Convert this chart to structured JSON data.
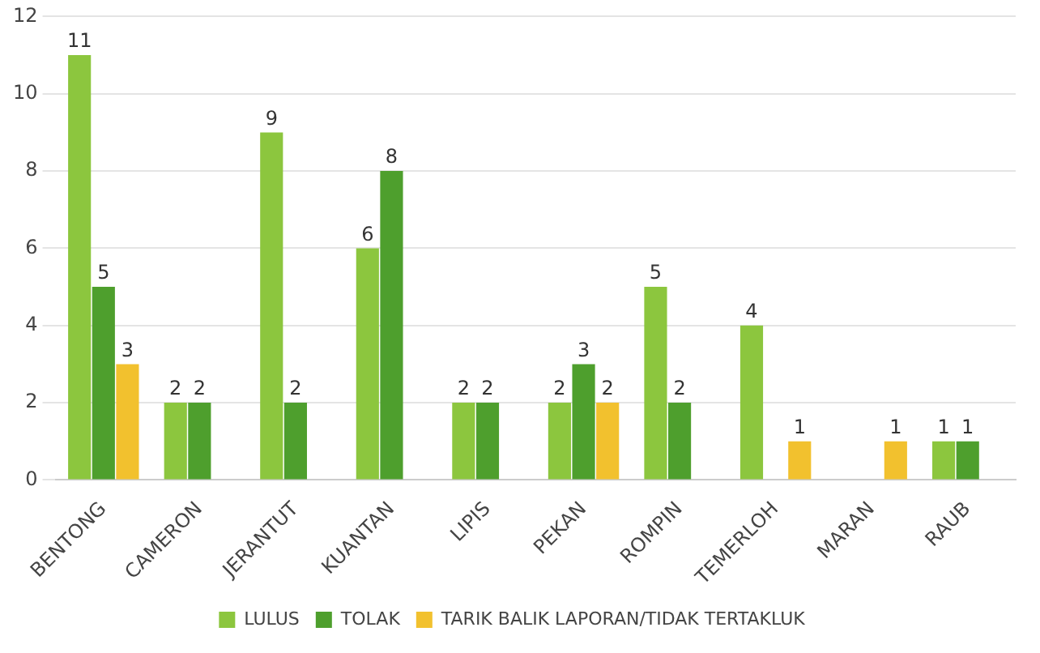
{
  "chart_data": {
    "type": "bar",
    "categories": [
      "BENTONG",
      "CAMERON",
      "JERANTUT",
      "KUANTAN",
      "LIPIS",
      "PEKAN",
      "ROMPIN",
      "TEMERLOH",
      "MARAN",
      "RAUB"
    ],
    "series": [
      {
        "name": "LULUS",
        "color": "#8cc63e",
        "values": [
          11,
          2,
          9,
          6,
          2,
          2,
          5,
          4,
          null,
          1
        ]
      },
      {
        "name": "TOLAK",
        "color": "#4e9f2d",
        "values": [
          5,
          2,
          2,
          8,
          2,
          3,
          2,
          null,
          null,
          1
        ]
      },
      {
        "name": "TARIK BALIK LAPORAN/TIDAK TERTAKLUK",
        "color": "#f2c12e",
        "values": [
          3,
          null,
          null,
          null,
          null,
          2,
          null,
          1,
          1,
          null
        ]
      }
    ],
    "ylim": [
      0,
      12
    ],
    "yticks": [
      0,
      2,
      4,
      6,
      8,
      10,
      12
    ],
    "grid": "y",
    "legend": "bottom",
    "data_labels": true
  }
}
